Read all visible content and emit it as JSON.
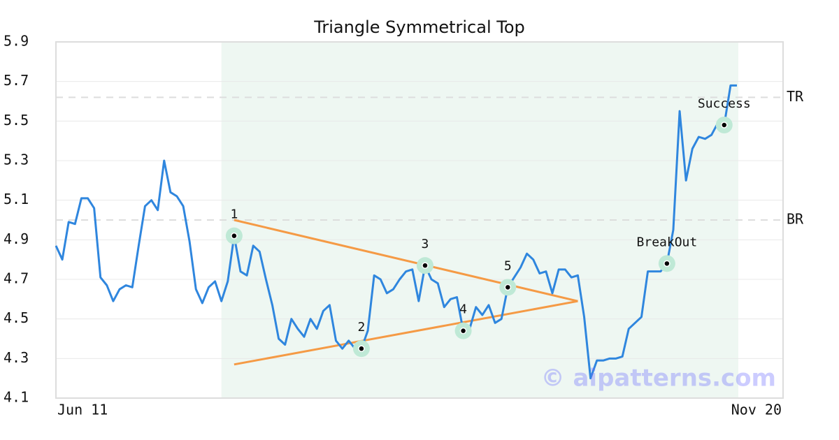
{
  "chart_data": {
    "type": "line",
    "title": "Triangle Symmetrical Top",
    "categories": [
      "Jun 11",
      null,
      null,
      null,
      null,
      null,
      null,
      null,
      null,
      null,
      null,
      null,
      null,
      null,
      null,
      null,
      null,
      null,
      null,
      null,
      null,
      null,
      null,
      null,
      null,
      null,
      null,
      null,
      null,
      null,
      null,
      null,
      null,
      null,
      null,
      null,
      null,
      null,
      null,
      null,
      null,
      null,
      null,
      null,
      null,
      null,
      null,
      null,
      null,
      null,
      null,
      null,
      null,
      null,
      null,
      null,
      null,
      null,
      null,
      null,
      null,
      null,
      null,
      null,
      null,
      null,
      null,
      null,
      null,
      null,
      null,
      null,
      null,
      null,
      null,
      null,
      null,
      null,
      null,
      null,
      null,
      null,
      null,
      null,
      null,
      null,
      null,
      null,
      null,
      null,
      null,
      null,
      null,
      null,
      null,
      null,
      null,
      null,
      null,
      null,
      null,
      null,
      null,
      null,
      null,
      null,
      null,
      "Nov 20"
    ],
    "series": [
      {
        "color": "#2f86de",
        "values": [
          4.87,
          4.8,
          4.99,
          4.98,
          5.11,
          5.11,
          5.06,
          4.71,
          4.67,
          4.59,
          4.65,
          4.67,
          4.66,
          4.87,
          5.07,
          5.1,
          5.05,
          5.3,
          5.14,
          5.12,
          5.07,
          4.89,
          4.65,
          4.58,
          4.66,
          4.69,
          4.59,
          4.69,
          4.92,
          4.74,
          4.72,
          4.87,
          4.84,
          4.7,
          4.57,
          4.4,
          4.37,
          4.5,
          4.45,
          4.41,
          4.5,
          4.45,
          4.54,
          4.57,
          4.39,
          4.35,
          4.39,
          4.35,
          4.35,
          4.44,
          4.72,
          4.7,
          4.63,
          4.65,
          4.7,
          4.74,
          4.75,
          4.59,
          4.77,
          4.7,
          4.68,
          4.56,
          4.6,
          4.61,
          4.44,
          4.45,
          4.56,
          4.52,
          4.57,
          4.48,
          4.5,
          4.66,
          4.71,
          4.76,
          4.83,
          4.8,
          4.73,
          4.74,
          4.63,
          4.75,
          4.75,
          4.71,
          4.72,
          4.51,
          4.2,
          4.29,
          4.29,
          4.3,
          4.3,
          4.31,
          4.45,
          4.48,
          4.51,
          4.74,
          4.74,
          4.74,
          4.78,
          4.95,
          5.55,
          5.2,
          5.36,
          5.42,
          5.41,
          5.43,
          5.49,
          5.48,
          5.68,
          5.68
        ]
      }
    ],
    "ylim": [
      4.1,
      5.9
    ],
    "yticks": [
      4.1,
      4.3,
      4.5,
      4.7,
      4.9,
      5.1,
      5.3,
      5.5,
      5.7,
      5.9
    ],
    "grid": true,
    "highlight": {
      "start": 26,
      "end": 107,
      "color": "#eef7f2"
    },
    "levels": [
      {
        "label": "TR",
        "value": 5.62
      },
      {
        "label": "BR",
        "value": 5.0
      }
    ],
    "trendlines": [
      {
        "color": "#f59a45",
        "x": [
          28,
          82
        ],
        "values": [
          5.0,
          4.59
        ]
      },
      {
        "color": "#f59a45",
        "x": [
          28,
          82
        ],
        "values": [
          4.27,
          4.59
        ]
      }
    ],
    "annotations": [
      {
        "label": "1",
        "index": 28
      },
      {
        "label": "2",
        "index": 48
      },
      {
        "label": "3",
        "index": 58
      },
      {
        "label": "4",
        "index": 64
      },
      {
        "label": "5",
        "index": 71
      },
      {
        "label": "BreakOut",
        "index": 96
      },
      {
        "label": "Success",
        "index": 105
      }
    ],
    "watermark": "© aipatterns.com"
  }
}
